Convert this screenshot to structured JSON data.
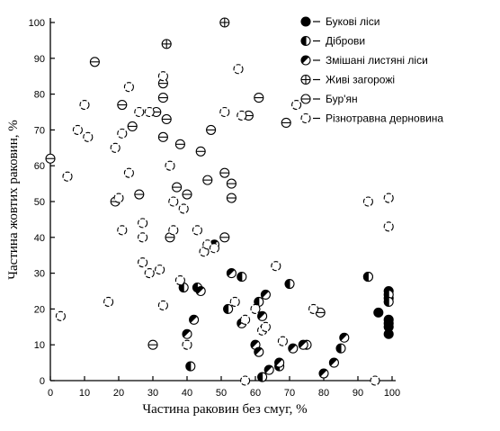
{
  "chart_data": {
    "type": "scatter",
    "xlabel": "Частина раковин без смуг, %",
    "ylabel": "Частина жовтих раковин, %",
    "xlim": [
      0,
      100
    ],
    "ylim": [
      0,
      100
    ],
    "xticks": [
      "0",
      "10",
      "20",
      "30",
      "40",
      "50",
      "60",
      "70",
      "80",
      "90",
      "100"
    ],
    "yticks": [
      "0",
      "10",
      "20",
      "30",
      "40",
      "50",
      "60",
      "70",
      "80",
      "90",
      "100"
    ],
    "grid": false,
    "legend_position": "top-right",
    "series": [
      {
        "name": "Букові ліси",
        "marker": "filled",
        "points": [
          [
            93,
            29
          ],
          [
            96,
            19
          ],
          [
            99,
            25
          ],
          [
            99,
            23
          ],
          [
            99,
            17
          ],
          [
            99,
            16
          ],
          [
            99,
            15
          ],
          [
            99,
            13
          ]
        ]
      },
      {
        "name": "Діброви",
        "marker": "half-vertical",
        "points": [
          [
            39,
            26
          ],
          [
            41,
            4
          ],
          [
            43,
            26
          ],
          [
            52,
            20
          ],
          [
            56,
            29
          ],
          [
            61,
            22
          ],
          [
            62,
            1
          ],
          [
            67,
            4
          ],
          [
            70,
            27
          ],
          [
            75,
            10
          ],
          [
            85,
            9
          ],
          [
            93,
            29
          ],
          [
            99,
            24
          ],
          [
            99,
            22
          ]
        ]
      },
      {
        "name": "Змішані листяні ліси",
        "marker": "half-diagonal",
        "points": [
          [
            40,
            13
          ],
          [
            42,
            17
          ],
          [
            44,
            25
          ],
          [
            48,
            38
          ],
          [
            53,
            30
          ],
          [
            56,
            16
          ],
          [
            60,
            10
          ],
          [
            61,
            8
          ],
          [
            62,
            18
          ],
          [
            63,
            24
          ],
          [
            64,
            3
          ],
          [
            67,
            5
          ],
          [
            71,
            9
          ],
          [
            74,
            10
          ],
          [
            80,
            2
          ],
          [
            83,
            5
          ],
          [
            86,
            12
          ]
        ]
      },
      {
        "name": "Живі загорожі",
        "marker": "cross",
        "points": [
          [
            34,
            94
          ],
          [
            51,
            100
          ]
        ]
      },
      {
        "name": "Бур'ян",
        "marker": "horizontal",
        "points": [
          [
            0,
            62
          ],
          [
            13,
            89
          ],
          [
            19,
            50
          ],
          [
            21,
            77
          ],
          [
            24,
            71
          ],
          [
            26,
            52
          ],
          [
            30,
            10
          ],
          [
            31,
            75
          ],
          [
            33,
            83
          ],
          [
            33,
            79
          ],
          [
            33,
            68
          ],
          [
            34,
            73
          ],
          [
            35,
            40
          ],
          [
            37,
            54
          ],
          [
            38,
            66
          ],
          [
            40,
            52
          ],
          [
            44,
            64
          ],
          [
            46,
            56
          ],
          [
            47,
            70
          ],
          [
            51,
            58
          ],
          [
            51,
            40
          ],
          [
            53,
            55
          ],
          [
            53,
            51
          ],
          [
            58,
            74
          ],
          [
            61,
            79
          ],
          [
            69,
            72
          ],
          [
            79,
            19
          ]
        ]
      },
      {
        "name": "Різнотравна дерновина",
        "marker": "open",
        "points": [
          [
            3,
            18
          ],
          [
            5,
            57
          ],
          [
            8,
            70
          ],
          [
            10,
            77
          ],
          [
            11,
            68
          ],
          [
            17,
            22
          ],
          [
            19,
            65
          ],
          [
            20,
            51
          ],
          [
            21,
            69
          ],
          [
            21,
            42
          ],
          [
            23,
            82
          ],
          [
            23,
            58
          ],
          [
            26,
            75
          ],
          [
            27,
            44
          ],
          [
            27,
            40
          ],
          [
            27,
            33
          ],
          [
            29,
            75
          ],
          [
            29,
            30
          ],
          [
            32,
            31
          ],
          [
            33,
            85
          ],
          [
            33,
            21
          ],
          [
            35,
            60
          ],
          [
            36,
            42
          ],
          [
            36,
            50
          ],
          [
            38,
            28
          ],
          [
            39,
            48
          ],
          [
            40,
            10
          ],
          [
            43,
            42
          ],
          [
            45,
            36
          ],
          [
            46,
            38
          ],
          [
            48,
            37
          ],
          [
            51,
            75
          ],
          [
            54,
            22
          ],
          [
            55,
            87
          ],
          [
            56,
            74
          ],
          [
            57,
            17
          ],
          [
            57,
            0
          ],
          [
            60,
            20
          ],
          [
            62,
            14
          ],
          [
            63,
            15
          ],
          [
            66,
            32
          ],
          [
            68,
            11
          ],
          [
            72,
            77
          ],
          [
            77,
            20
          ],
          [
            93,
            50
          ],
          [
            95,
            0
          ],
          [
            99,
            51
          ],
          [
            99,
            43
          ]
        ]
      }
    ]
  }
}
